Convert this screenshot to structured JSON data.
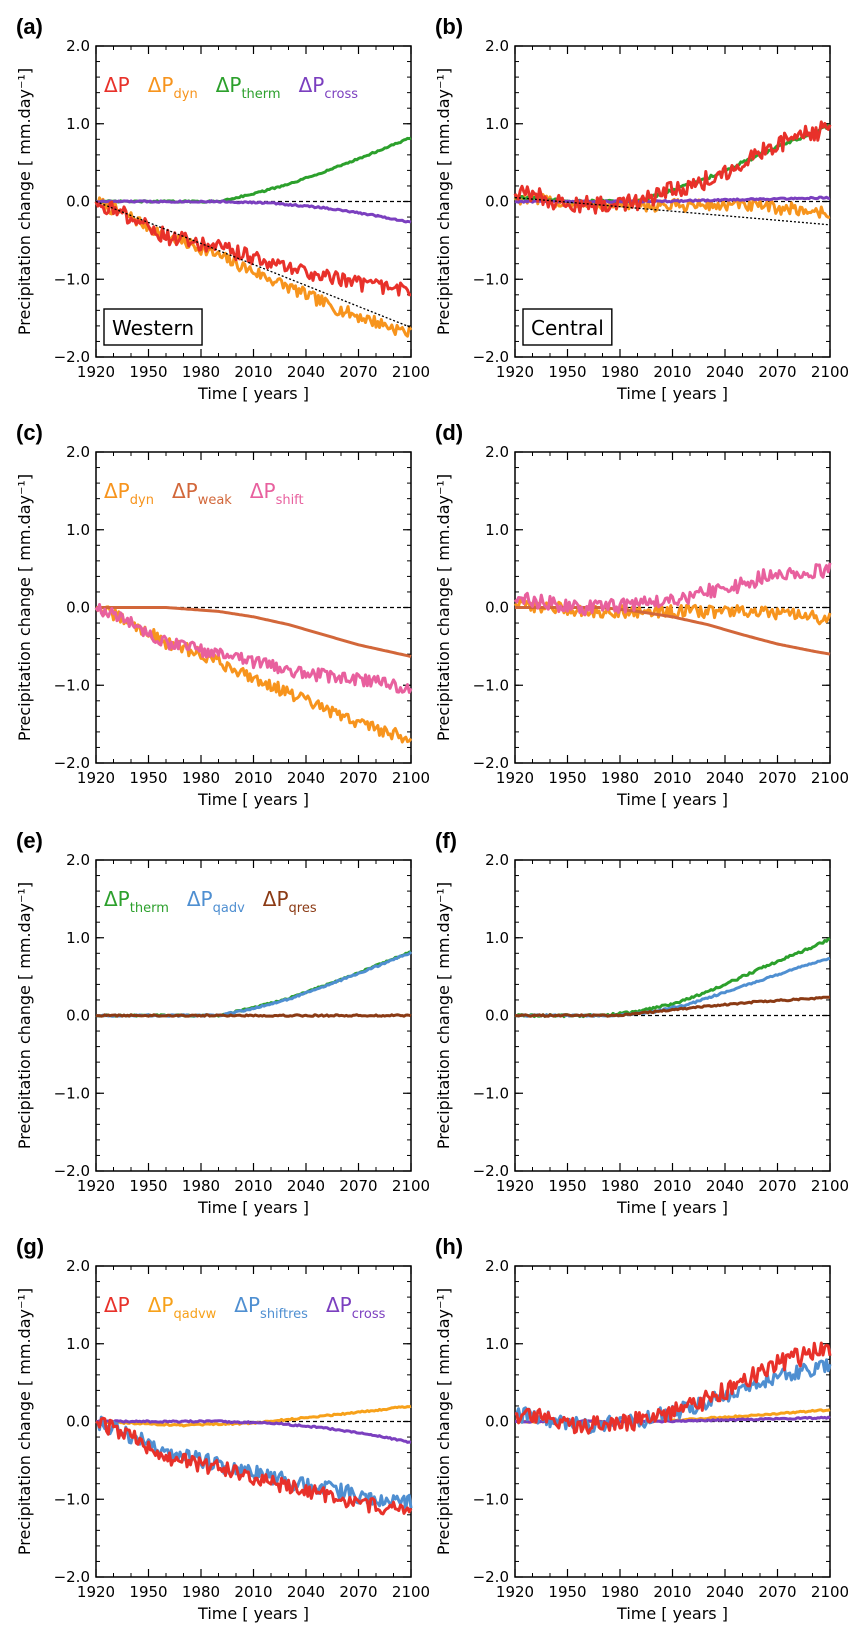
{
  "chart_data": [
    {
      "panel": "(a)",
      "type": "line",
      "ylabel": "Precipitation change [ mm.day⁻¹]",
      "xlabel": "Time  [ years ]",
      "xlim": [
        1920,
        2100
      ],
      "ylim": [
        -2.0,
        2.0
      ],
      "xticks": [
        "1920",
        "1950",
        "1980",
        "2010",
        "2040",
        "2070",
        "2100"
      ],
      "yticks": [
        "2.0",
        "1.0",
        "0.0",
        "-1.0",
        "-2.0"
      ],
      "region": "Western",
      "legend": [
        {
          "base": "ΔP",
          "sub": "",
          "color": "#e8312a"
        },
        {
          "base": "ΔP",
          "sub": "dyn",
          "color": "#f7941d"
        },
        {
          "base": "ΔP",
          "sub": "therm",
          "color": "#2ca02c"
        },
        {
          "base": "ΔP",
          "sub": "cross",
          "color": "#7b3fbf"
        }
      ],
      "series": [
        {
          "color": "#f7941d",
          "noise": 0.08,
          "x": [
            1920,
            1940,
            1960,
            1980,
            2000,
            2020,
            2040,
            2060,
            2080,
            2100
          ],
          "y": [
            0.0,
            -0.2,
            -0.45,
            -0.6,
            -0.8,
            -1.0,
            -1.2,
            -1.4,
            -1.55,
            -1.7
          ]
        },
        {
          "color": "#2ca02c",
          "noise": 0.01,
          "x": [
            1920,
            1960,
            1990,
            2010,
            2030,
            2050,
            2070,
            2090,
            2100
          ],
          "y": [
            0.0,
            0.0,
            0.0,
            0.1,
            0.22,
            0.38,
            0.55,
            0.73,
            0.82
          ]
        },
        {
          "color": "#7b3fbf",
          "noise": 0.01,
          "x": [
            1920,
            1990,
            2020,
            2050,
            2080,
            2100
          ],
          "y": [
            0.0,
            0.0,
            -0.02,
            -0.08,
            -0.18,
            -0.27
          ]
        },
        {
          "color": "#e8312a",
          "noise": 0.1,
          "x": [
            1920,
            1940,
            1960,
            1980,
            2000,
            2020,
            2040,
            2060,
            2080,
            2100
          ],
          "y": [
            0.0,
            -0.2,
            -0.45,
            -0.55,
            -0.65,
            -0.8,
            -0.9,
            -1.0,
            -1.1,
            -1.15
          ]
        }
      ],
      "trend": {
        "x": [
          1920,
          2100
        ],
        "y": [
          0.0,
          -1.62
        ]
      }
    },
    {
      "panel": "(b)",
      "type": "line",
      "ylabel": "Precipitation change [ mm.day⁻¹]",
      "xlabel": "Time  [ years ]",
      "xlim": [
        1920,
        2100
      ],
      "ylim": [
        -2.0,
        2.0
      ],
      "xticks": [
        "1920",
        "1950",
        "1980",
        "2010",
        "2040",
        "2070",
        "2100"
      ],
      "yticks": [
        "2.0",
        "1.0",
        "0.0",
        "-1.0",
        "-2.0"
      ],
      "region": "Central",
      "legend": [],
      "series": [
        {
          "color": "#f7941d",
          "noise": 0.08,
          "x": [
            1920,
            1960,
            1990,
            2020,
            2050,
            2080,
            2100
          ],
          "y": [
            0.05,
            -0.05,
            -0.05,
            -0.05,
            -0.05,
            -0.1,
            -0.15
          ]
        },
        {
          "color": "#2ca02c",
          "noise": 0.02,
          "x": [
            1920,
            1960,
            1990,
            2010,
            2030,
            2050,
            2070,
            2090,
            2100
          ],
          "y": [
            0.05,
            0.0,
            0.0,
            0.15,
            0.3,
            0.5,
            0.7,
            0.88,
            0.98
          ]
        },
        {
          "color": "#7b3fbf",
          "noise": 0.01,
          "x": [
            1920,
            2000,
            2060,
            2100
          ],
          "y": [
            0.0,
            0.0,
            0.03,
            0.05
          ]
        },
        {
          "color": "#e8312a",
          "noise": 0.12,
          "x": [
            1920,
            1960,
            1990,
            2010,
            2030,
            2050,
            2070,
            2090,
            2100
          ],
          "y": [
            0.1,
            -0.05,
            0.0,
            0.15,
            0.28,
            0.5,
            0.75,
            0.88,
            0.95
          ]
        }
      ],
      "trend": {
        "x": [
          1920,
          2100
        ],
        "y": [
          0.05,
          -0.3
        ]
      }
    },
    {
      "panel": "(c)",
      "type": "line",
      "ylabel": "Precipitation change [ mm.day⁻¹]",
      "xlabel": "Time  [ years ]",
      "xlim": [
        1920,
        2100
      ],
      "ylim": [
        -2.0,
        2.0
      ],
      "xticks": [
        "1920",
        "1950",
        "1980",
        "2010",
        "2040",
        "2070",
        "2100"
      ],
      "yticks": [
        "2.0",
        "1.0",
        "0.0",
        "-1.0",
        "-2.0"
      ],
      "region": "",
      "legend": [
        {
          "base": "ΔP",
          "sub": "dyn",
          "color": "#f7941d"
        },
        {
          "base": "ΔP",
          "sub": "weak",
          "color": "#d2673a"
        },
        {
          "base": "ΔP",
          "sub": "shift",
          "color": "#e8609e"
        }
      ],
      "series": [
        {
          "color": "#f7941d",
          "noise": 0.08,
          "x": [
            1920,
            1940,
            1960,
            1980,
            2000,
            2020,
            2040,
            2060,
            2080,
            2100
          ],
          "y": [
            0.0,
            -0.2,
            -0.45,
            -0.6,
            -0.8,
            -1.0,
            -1.2,
            -1.4,
            -1.55,
            -1.7
          ]
        },
        {
          "color": "#d2673a",
          "noise": 0.0,
          "x": [
            1920,
            1960,
            1990,
            2010,
            2030,
            2050,
            2070,
            2090,
            2100
          ],
          "y": [
            0.0,
            0.0,
            -0.05,
            -0.12,
            -0.22,
            -0.35,
            -0.48,
            -0.58,
            -0.63
          ]
        },
        {
          "color": "#e8609e",
          "noise": 0.08,
          "x": [
            1920,
            1940,
            1960,
            1980,
            2000,
            2020,
            2040,
            2060,
            2080,
            2100
          ],
          "y": [
            0.0,
            -0.2,
            -0.45,
            -0.55,
            -0.65,
            -0.75,
            -0.85,
            -0.9,
            -0.95,
            -1.05
          ]
        }
      ],
      "trend": null
    },
    {
      "panel": "(d)",
      "type": "line",
      "ylabel": "Precipitation change [ mm.day⁻¹]",
      "xlabel": "Time  [ years ]",
      "xlim": [
        1920,
        2100
      ],
      "ylim": [
        -2.0,
        2.0
      ],
      "xticks": [
        "1920",
        "1950",
        "1980",
        "2010",
        "2040",
        "2070",
        "2100"
      ],
      "yticks": [
        "2.0",
        "1.0",
        "0.0",
        "-1.0",
        "-2.0"
      ],
      "region": "",
      "legend": [],
      "series": [
        {
          "color": "#f7941d",
          "noise": 0.08,
          "x": [
            1920,
            1960,
            1990,
            2020,
            2050,
            2080,
            2100
          ],
          "y": [
            0.05,
            -0.05,
            -0.05,
            -0.05,
            -0.05,
            -0.1,
            -0.15
          ]
        },
        {
          "color": "#d2673a",
          "noise": 0.0,
          "x": [
            1920,
            1970,
            1990,
            2010,
            2030,
            2050,
            2070,
            2090,
            2100
          ],
          "y": [
            0.0,
            0.0,
            -0.05,
            -0.12,
            -0.22,
            -0.35,
            -0.47,
            -0.56,
            -0.6
          ]
        },
        {
          "color": "#e8609e",
          "noise": 0.1,
          "x": [
            1920,
            1960,
            1990,
            2020,
            2050,
            2070,
            2090,
            2100
          ],
          "y": [
            0.1,
            0.0,
            0.05,
            0.15,
            0.3,
            0.45,
            0.45,
            0.48
          ]
        }
      ],
      "trend": null
    },
    {
      "panel": "(e)",
      "type": "line",
      "ylabel": "Precipitation change [ mm.day⁻¹]",
      "xlabel": "Time  [ years ]",
      "xlim": [
        1920,
        2100
      ],
      "ylim": [
        -2.0,
        2.0
      ],
      "xticks": [
        "1920",
        "1950",
        "1980",
        "2010",
        "2040",
        "2070",
        "2100"
      ],
      "yticks": [
        "2.0",
        "1.0",
        "0.0",
        "-1.0",
        "-2.0"
      ],
      "region": "",
      "legend": [
        {
          "base": "ΔP",
          "sub": "therm",
          "color": "#2ca02c"
        },
        {
          "base": "ΔP",
          "sub": "qadv",
          "color": "#4f8fd1"
        },
        {
          "base": "ΔP",
          "sub": "qres",
          "color": "#8b3a14"
        }
      ],
      "series": [
        {
          "color": "#2ca02c",
          "noise": 0.01,
          "x": [
            1920,
            1960,
            1990,
            2010,
            2030,
            2050,
            2070,
            2090,
            2100
          ],
          "y": [
            0.0,
            0.0,
            0.0,
            0.1,
            0.22,
            0.38,
            0.55,
            0.73,
            0.82
          ]
        },
        {
          "color": "#4f8fd1",
          "noise": 0.01,
          "x": [
            1920,
            1960,
            1990,
            2010,
            2030,
            2050,
            2070,
            2090,
            2100
          ],
          "y": [
            0.0,
            0.0,
            0.0,
            0.09,
            0.21,
            0.37,
            0.54,
            0.72,
            0.81
          ]
        },
        {
          "color": "#8b3a14",
          "noise": 0.01,
          "x": [
            1920,
            2100
          ],
          "y": [
            0.0,
            0.0
          ]
        }
      ],
      "trend": null
    },
    {
      "panel": "(f)",
      "type": "line",
      "ylabel": "Precipitation change [ mm.day⁻¹]",
      "xlabel": "Time  [ years ]",
      "xlim": [
        1920,
        2100
      ],
      "ylim": [
        -2.0,
        2.0
      ],
      "xticks": [
        "1920",
        "1950",
        "1980",
        "2010",
        "2040",
        "2070",
        "2100"
      ],
      "yticks": [
        "2.0",
        "1.0",
        "0.0",
        "-1.0",
        "-2.0"
      ],
      "region": "",
      "legend": [],
      "series": [
        {
          "color": "#2ca02c",
          "noise": 0.015,
          "x": [
            1920,
            1970,
            1990,
            2010,
            2030,
            2050,
            2070,
            2090,
            2100
          ],
          "y": [
            0.0,
            0.0,
            0.05,
            0.15,
            0.3,
            0.5,
            0.7,
            0.88,
            0.98
          ]
        },
        {
          "color": "#4f8fd1",
          "noise": 0.01,
          "x": [
            1920,
            1980,
            2000,
            2020,
            2040,
            2060,
            2080,
            2100
          ],
          "y": [
            0.0,
            0.0,
            0.05,
            0.15,
            0.3,
            0.45,
            0.6,
            0.74
          ]
        },
        {
          "color": "#8b3a14",
          "noise": 0.01,
          "x": [
            1920,
            1980,
            2000,
            2030,
            2060,
            2100
          ],
          "y": [
            0.0,
            0.0,
            0.05,
            0.12,
            0.18,
            0.23
          ]
        }
      ],
      "trend": null
    },
    {
      "panel": "(g)",
      "type": "line",
      "ylabel": "Precipitation change [ mm.day⁻¹]",
      "xlabel": "Time  [ years ]",
      "xlim": [
        1920,
        2100
      ],
      "ylim": [
        -2.0,
        2.0
      ],
      "xticks": [
        "1920",
        "1950",
        "1980",
        "2010",
        "2040",
        "2070",
        "2100"
      ],
      "yticks": [
        "2.0",
        "1.0",
        "0.0",
        "-1.0",
        "-2.0"
      ],
      "region": "",
      "legend": [
        {
          "base": "ΔP",
          "sub": "",
          "color": "#e8312a"
        },
        {
          "base": "ΔP",
          "sub": "qadvw",
          "color": "#f7a11a"
        },
        {
          "base": "ΔP",
          "sub": "shiftres",
          "color": "#4f8fd1"
        },
        {
          "base": "ΔP",
          "sub": "cross",
          "color": "#7b3fbf"
        }
      ],
      "series": [
        {
          "color": "#f7a11a",
          "noise": 0.01,
          "x": [
            1920,
            1970,
            2010,
            2040,
            2070,
            2100
          ],
          "y": [
            0.0,
            -0.05,
            -0.02,
            0.05,
            0.12,
            0.2
          ]
        },
        {
          "color": "#7b3fbf",
          "noise": 0.01,
          "x": [
            1920,
            1990,
            2020,
            2050,
            2080,
            2100
          ],
          "y": [
            0.0,
            0.0,
            -0.02,
            -0.08,
            -0.18,
            -0.27
          ]
        },
        {
          "color": "#4f8fd1",
          "noise": 0.1,
          "x": [
            1920,
            1940,
            1960,
            1980,
            2000,
            2020,
            2040,
            2060,
            2080,
            2100
          ],
          "y": [
            0.0,
            -0.18,
            -0.4,
            -0.5,
            -0.6,
            -0.72,
            -0.82,
            -0.9,
            -1.0,
            -1.05
          ]
        },
        {
          "color": "#e8312a",
          "noise": 0.1,
          "x": [
            1920,
            1940,
            1960,
            1980,
            2000,
            2020,
            2040,
            2060,
            2080,
            2100
          ],
          "y": [
            0.0,
            -0.2,
            -0.45,
            -0.55,
            -0.65,
            -0.8,
            -0.9,
            -1.0,
            -1.1,
            -1.15
          ]
        }
      ],
      "trend": null
    },
    {
      "panel": "(h)",
      "type": "line",
      "ylabel": "Precipitation change [ mm.day⁻¹]",
      "xlabel": "Time  [ years ]",
      "xlim": [
        1920,
        2100
      ],
      "ylim": [
        -2.0,
        2.0
      ],
      "xticks": [
        "1920",
        "1950",
        "1980",
        "2010",
        "2040",
        "2070",
        "2100"
      ],
      "yticks": [
        "2.0",
        "1.0",
        "0.0",
        "-1.0",
        "-2.0"
      ],
      "region": "",
      "legend": [],
      "series": [
        {
          "color": "#f7a11a",
          "noise": 0.01,
          "x": [
            1920,
            2000,
            2050,
            2100
          ],
          "y": [
            0.0,
            0.0,
            0.07,
            0.15
          ]
        },
        {
          "color": "#7b3fbf",
          "noise": 0.01,
          "x": [
            1920,
            2000,
            2060,
            2100
          ],
          "y": [
            0.0,
            0.0,
            0.03,
            0.05
          ]
        },
        {
          "color": "#4f8fd1",
          "noise": 0.1,
          "x": [
            1920,
            1960,
            1990,
            2010,
            2030,
            2050,
            2070,
            2090,
            2100
          ],
          "y": [
            0.1,
            -0.05,
            0.0,
            0.12,
            0.25,
            0.42,
            0.6,
            0.68,
            0.72
          ]
        },
        {
          "color": "#e8312a",
          "noise": 0.12,
          "x": [
            1920,
            1960,
            1990,
            2010,
            2030,
            2050,
            2070,
            2090,
            2100
          ],
          "y": [
            0.1,
            -0.05,
            0.0,
            0.15,
            0.28,
            0.5,
            0.75,
            0.88,
            0.95
          ]
        }
      ],
      "trend": null
    }
  ]
}
